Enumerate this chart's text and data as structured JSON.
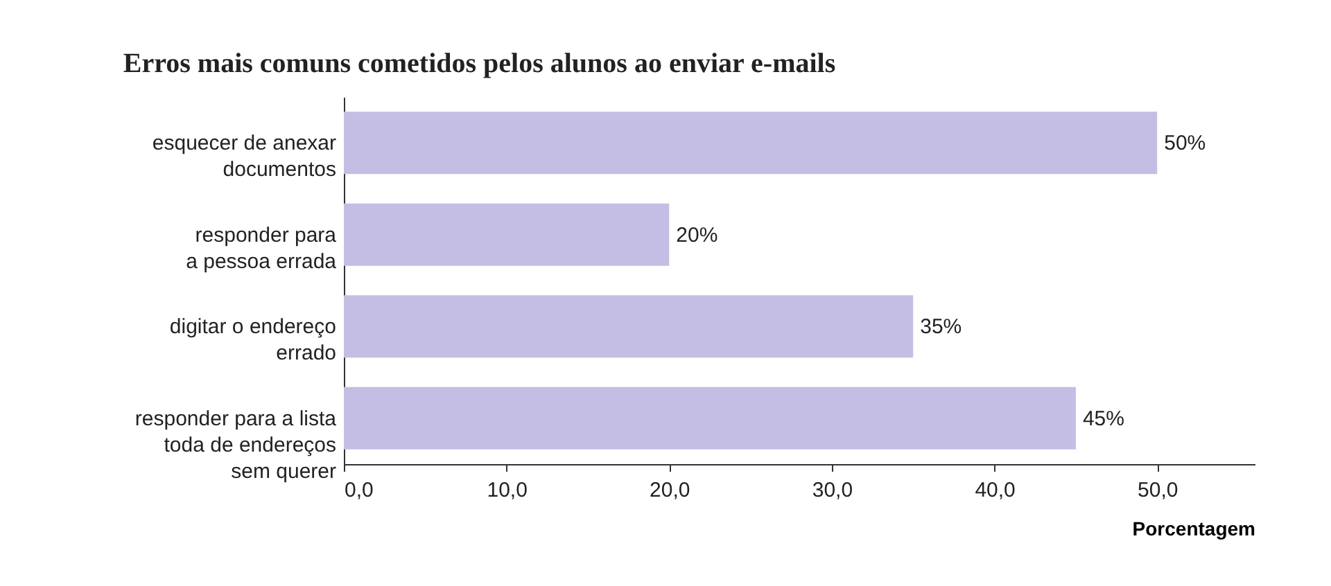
{
  "chart_data": {
    "type": "bar",
    "orientation": "horizontal",
    "title": "Erros mais comuns cometidos pelos alunos ao enviar e-mails",
    "xlabel": "Porcentagem",
    "categories": [
      "esquecer de anexar\ndocumentos",
      "responder para\na pessoa errada",
      "digitar o endereço\nerrado",
      "responder para a lista\ntoda de endereços\nsem querer"
    ],
    "values": [
      50,
      20,
      35,
      45
    ],
    "value_labels": [
      "50%",
      "20%",
      "35%",
      "45%"
    ],
    "color": "#c4bee4",
    "xlim": [
      0,
      56
    ],
    "xticks": [
      {
        "value": 0,
        "label": "0,0"
      },
      {
        "value": 10,
        "label": "10,0"
      },
      {
        "value": 20,
        "label": "20,0"
      },
      {
        "value": 30,
        "label": "30,0"
      },
      {
        "value": 40,
        "label": "40,0"
      },
      {
        "value": 50,
        "label": "50,0"
      }
    ],
    "grid": false
  }
}
